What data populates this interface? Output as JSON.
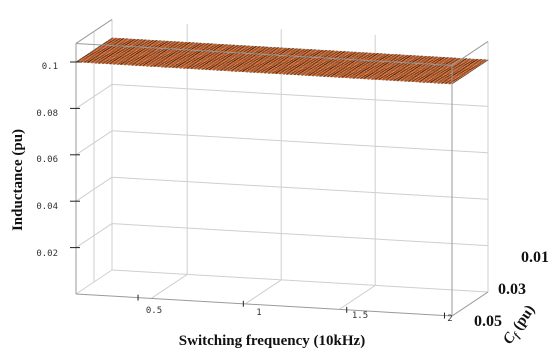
{
  "chart_data": {
    "type": "surface",
    "title": "",
    "xlabel": "Switching frequency (10kHz)",
    "ylabel": "Inductance (pu)",
    "zlabel_main": "C",
    "zlabel_sub": "f",
    "zlabel_unit": " (pu)",
    "x_ticks": [
      "0.5",
      "1",
      "1.5",
      "2"
    ],
    "y_ticks": [
      "0.02",
      "0.04",
      "0.06",
      "0.08",
      "0.1"
    ],
    "cf_ticks": [
      "0.01",
      "0.03",
      "0.05"
    ],
    "xlim": [
      0.2,
      2.0
    ],
    "ylim": [
      0,
      0.1
    ],
    "cf_lim": [
      0.05,
      0.01
    ],
    "model": "L = 1 / (Cf * (2*pi*k*fsw)^2) clipped at 0.1 pu",
    "colormap": [
      "#3a1456",
      "#5b2d86",
      "#3b5aa8",
      "#1f8f8a",
      "#3fb24a",
      "#a7d13a",
      "#f3e63a",
      "#f5b43a",
      "#f07a3a"
    ],
    "grid": true
  }
}
